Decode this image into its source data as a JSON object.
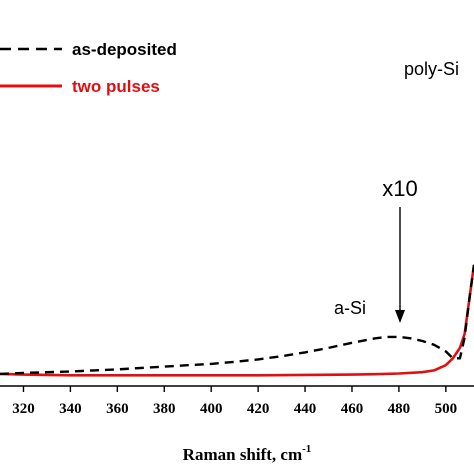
{
  "chart_data": {
    "type": "line",
    "xlabel": "Raman shift, cm",
    "xlabel_superscript": "-1",
    "x_ticks": [
      "320",
      "340",
      "360",
      "380",
      "400",
      "420",
      "440",
      "460",
      "480",
      "500"
    ],
    "xlim": [
      310,
      512
    ],
    "ylim": [
      0,
      1
    ],
    "legend": {
      "placement": "top-left",
      "entries": [
        {
          "label": "as-deposited",
          "style": "dashed",
          "color": "#000000"
        },
        {
          "label": "two pulses",
          "style": "solid",
          "color": "#e01010"
        }
      ]
    },
    "annotations": {
      "poly_si": "poly-Si",
      "magnification": "x10",
      "a_si": "a-Si"
    },
    "series": [
      {
        "name": "as-deposited",
        "x": [
          310,
          320,
          330,
          340,
          350,
          360,
          370,
          380,
          390,
          400,
          410,
          420,
          430,
          440,
          450,
          460,
          470,
          475,
          480,
          485,
          490,
          495,
          500,
          503,
          506,
          508,
          510,
          512
        ],
        "y": [
          0.035,
          0.038,
          0.04,
          0.042,
          0.045,
          0.048,
          0.052,
          0.056,
          0.06,
          0.064,
          0.07,
          0.077,
          0.086,
          0.097,
          0.11,
          0.125,
          0.138,
          0.142,
          0.142,
          0.138,
          0.13,
          0.119,
          0.1,
          0.08,
          0.08,
          0.14,
          0.25,
          0.35
        ]
      },
      {
        "name": "two pulses",
        "x": [
          310,
          320,
          340,
          360,
          380,
          400,
          420,
          440,
          460,
          470,
          480,
          490,
          495,
          500,
          503,
          506,
          508,
          510,
          512
        ],
        "y": [
          0.035,
          0.033,
          0.031,
          0.031,
          0.031,
          0.031,
          0.031,
          0.032,
          0.033,
          0.034,
          0.036,
          0.04,
          0.045,
          0.06,
          0.08,
          0.11,
          0.15,
          0.25,
          0.35
        ]
      }
    ]
  }
}
